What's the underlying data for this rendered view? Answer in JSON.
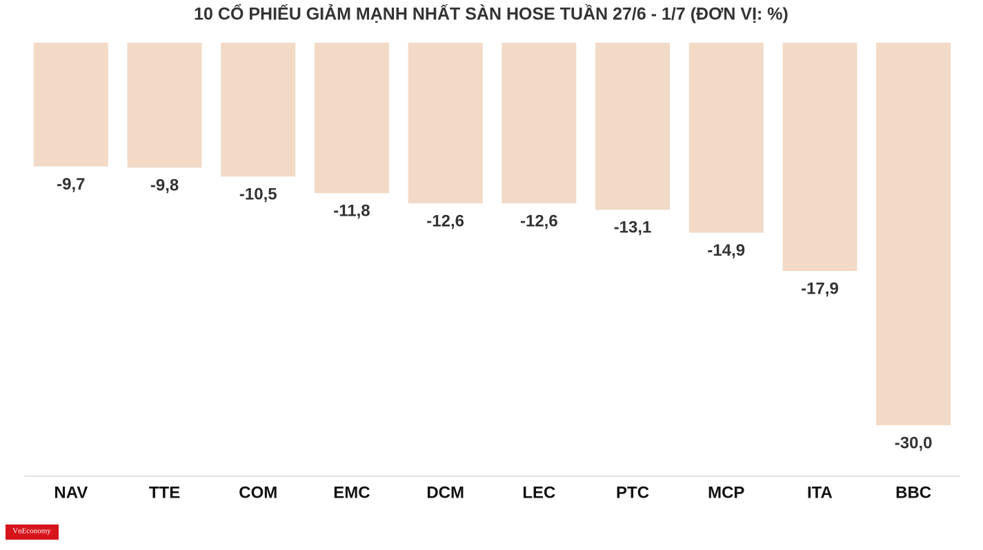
{
  "chart_data": {
    "type": "bar",
    "title": "10 CỔ PHIẾU GIẢM MẠNH NHẤT SÀN HOSE TUẦN 27/6 - 1/7 (ĐƠN VỊ: %)",
    "categories": [
      "NAV",
      "TTE",
      "COM",
      "EMC",
      "DCM",
      "LEC",
      "PTC",
      "MCP",
      "ITA",
      "BBC"
    ],
    "values": [
      -9.7,
      -9.8,
      -10.5,
      -11.8,
      -12.6,
      -12.6,
      -13.1,
      -14.9,
      -17.9,
      -30.0
    ],
    "value_labels": [
      "-9,7",
      "-9,8",
      "-10,5",
      "-11,8",
      "-12,6",
      "-12,6",
      "-13,1",
      "-14,9",
      "-17,9",
      "-30,0"
    ],
    "color": "#f2dac6",
    "ylim": [
      -34,
      0
    ],
    "source": "VnEconomy"
  }
}
